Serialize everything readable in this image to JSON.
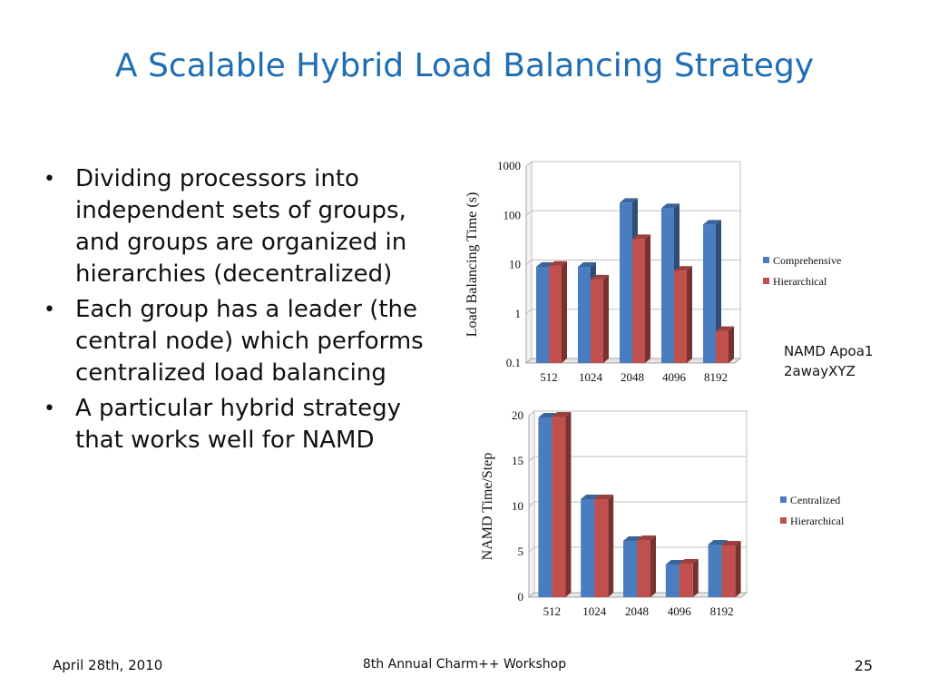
{
  "slide": {
    "title": "A Scalable Hybrid Load Balancing Strategy",
    "bullets": [
      "Dividing processors into independent sets of groups, and groups are organized in hierarchies (decentralized)",
      "Each group has a leader (the central node) which performs centralized load balancing",
      "A particular hybrid strategy that works well for NAMD"
    ],
    "note_line1": "NAMD Apoa1",
    "note_line2": "2awayXYZ",
    "footer_date": "April 28th, 2010",
    "footer_event": "8th Annual Charm++ Workshop",
    "page_number": "25"
  },
  "colors": {
    "title": "#1f6eb4",
    "series_blue": "#4a7dbf",
    "series_red": "#c0504d"
  },
  "chart_data": [
    {
      "type": "bar",
      "title": "",
      "xlabel": "",
      "ylabel": "Load Balancing Time (s)",
      "yscale": "log",
      "ylim": [
        0.1,
        1000
      ],
      "yticks": [
        "0.1",
        "1",
        "10",
        "100",
        "1000"
      ],
      "categories": [
        "512",
        "1024",
        "2048",
        "4096",
        "8192"
      ],
      "series": [
        {
          "name": "Comprehensive",
          "values": [
            9,
            9,
            180,
            140,
            65
          ]
        },
        {
          "name": "Hierarchical",
          "values": [
            9.5,
            5,
            33,
            7.5,
            0.45
          ]
        }
      ],
      "legend": "right",
      "grid": true
    },
    {
      "type": "bar",
      "title": "",
      "xlabel": "",
      "ylabel": "NAMD Time/Step",
      "yscale": "linear",
      "ylim": [
        0,
        20
      ],
      "yticks": [
        "0",
        "5",
        "10",
        "15",
        "20"
      ],
      "categories": [
        "512",
        "1024",
        "2048",
        "4096",
        "8192"
      ],
      "series": [
        {
          "name": "Centralized",
          "values": [
            19.8,
            10.8,
            6.2,
            3.6,
            5.8
          ]
        },
        {
          "name": "Hierarchical",
          "values": [
            19.9,
            10.8,
            6.3,
            3.7,
            5.7
          ]
        }
      ],
      "legend": "right",
      "grid": true
    }
  ]
}
